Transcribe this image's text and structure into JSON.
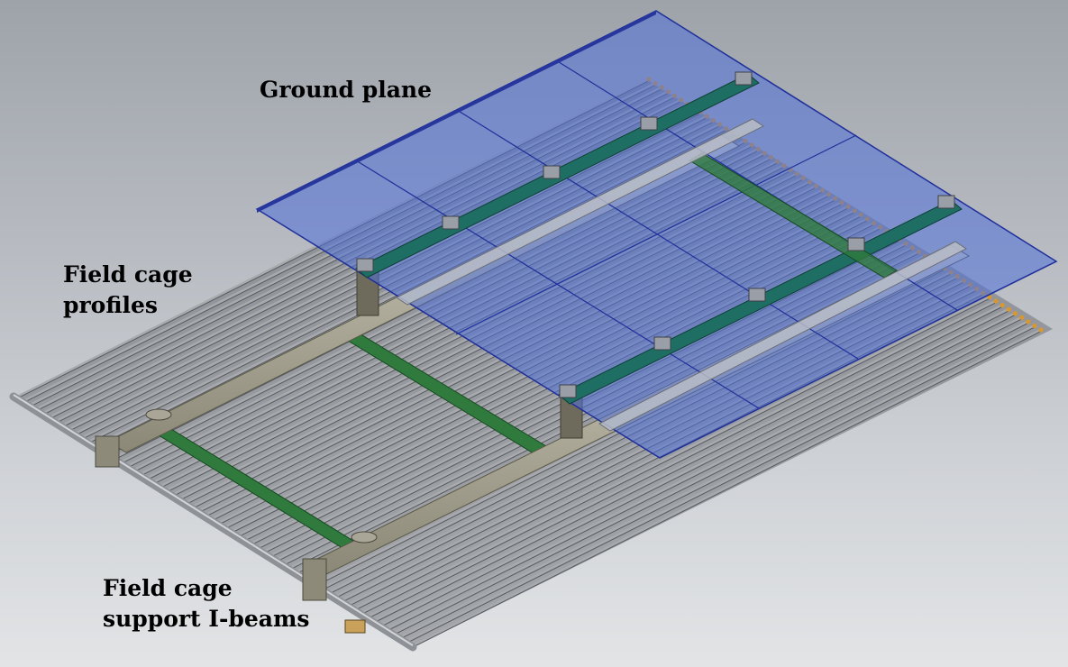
{
  "labels": {
    "ground_plane": "Ground plane",
    "field_cage_profiles_line1": "Field cage",
    "field_cage_profiles_line2": "profiles",
    "field_cage_ibeams_line1": "Field cage",
    "field_cage_ibeams_line2": "support I-beams"
  },
  "colors": {
    "background_top": "#9ea3aa",
    "background_bottom": "#e2e4e6",
    "ground_plane_fill": "#4f6fd8",
    "ground_plane_edge": "#1f2f9a",
    "profile_tube": "#a8aaae",
    "profile_end_cap": "#d9972f",
    "ibeam": "#a8a493",
    "green_rail": "#2f7a3c",
    "support_rail": "#1e6e63"
  }
}
